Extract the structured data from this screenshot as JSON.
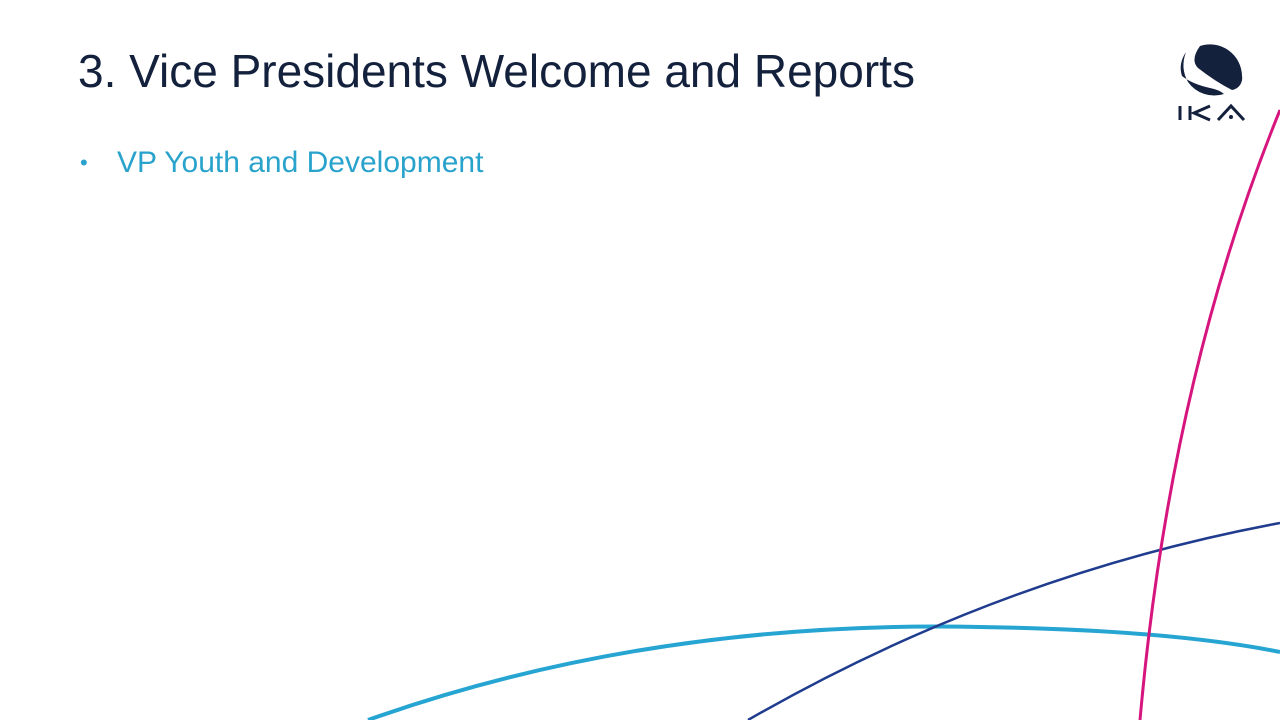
{
  "slide": {
    "title": "3. Vice Presidents Welcome and Reports",
    "bullets": [
      {
        "label": "VP Youth and Development"
      }
    ]
  },
  "logo": {
    "text": "IKA",
    "icon": "ika-logo"
  },
  "colors": {
    "title": "#14213d",
    "bullet": "#2aa3cc",
    "pink": "#d6157f",
    "navy": "#1f3c8f",
    "cyan": "#27a5d2"
  }
}
